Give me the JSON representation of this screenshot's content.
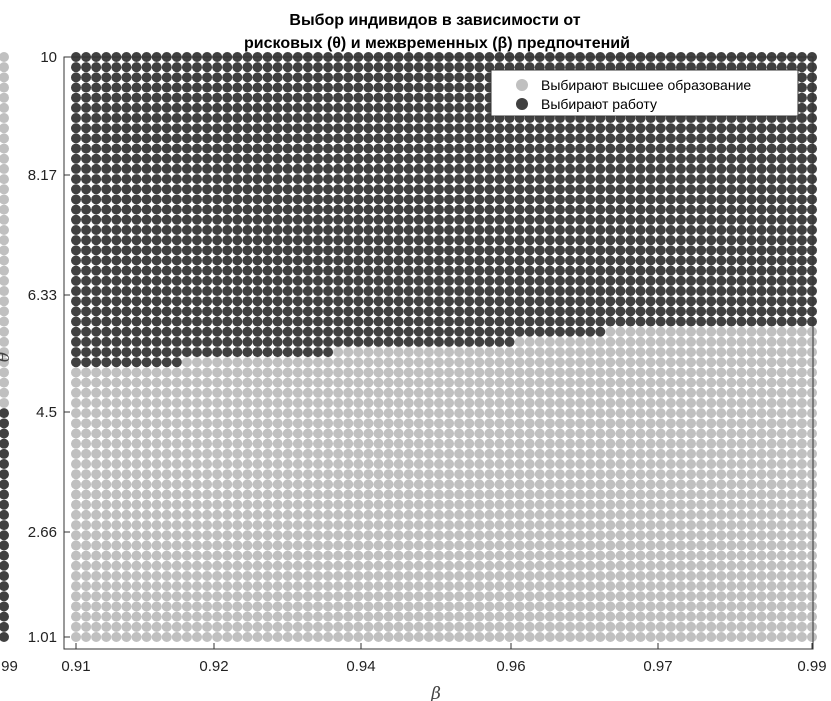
{
  "chart_data": {
    "type": "scatter",
    "title_line1": "Выбор индивидов в зависимости от",
    "title_line2": "рисковых (θ) и межвременных (β) предпочтений",
    "xlabel": "β",
    "ylabel": "θ",
    "xlim": [
      0.91,
      0.99
    ],
    "ylim": [
      1.01,
      10
    ],
    "x_tick_labels": [
      "0.91",
      "0.92",
      "0.94",
      "0.96",
      "0.97",
      "0.99"
    ],
    "y_tick_labels": [
      "1.01",
      "2.66",
      "4.5",
      "6.33",
      "8.17",
      "10"
    ],
    "left_edge_x_label": ".99",
    "grid_points_x": 74,
    "grid_points_y": 58,
    "series": [
      {
        "name": "Выбирают высшее образование",
        "color": "#c0c0c0",
        "region": "theta below boundary"
      },
      {
        "name": "Выбирают работу",
        "color": "#404040",
        "region": "theta at or above boundary"
      }
    ],
    "boundary": [
      {
        "beta_from": 0.91,
        "beta_to": 0.922,
        "theta": 5.12
      },
      {
        "beta_from": 0.922,
        "beta_to": 0.938,
        "theta": 5.34
      },
      {
        "beta_from": 0.938,
        "beta_to": 0.958,
        "theta": 5.56
      },
      {
        "beta_from": 0.958,
        "beta_to": 0.968,
        "theta": 5.67
      },
      {
        "beta_from": 0.968,
        "beta_to": 0.99,
        "theta": 5.78
      }
    ],
    "legend_position": "top-right",
    "grid": false
  }
}
